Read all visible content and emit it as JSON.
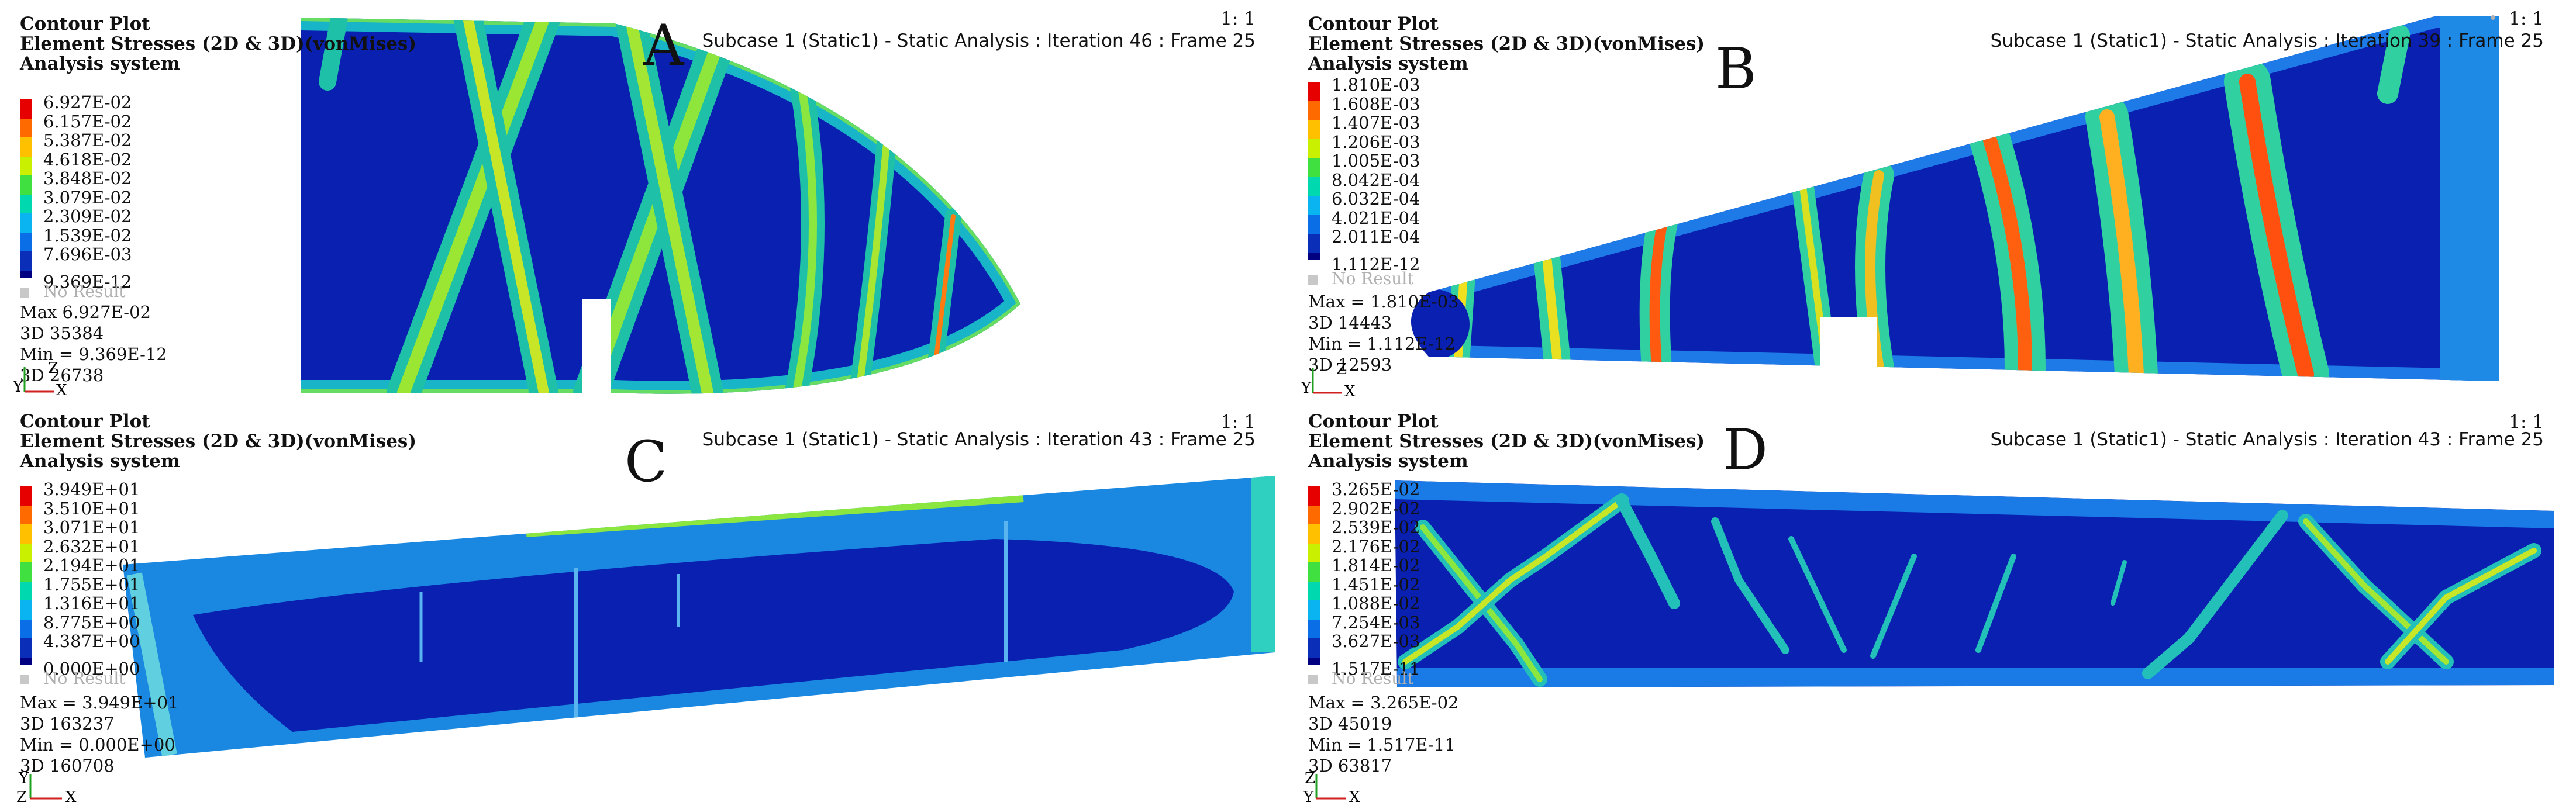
{
  "colors": {
    "scale": [
      "#e60000",
      "#ff5a00",
      "#ffb000",
      "#f2f200",
      "#8cf000",
      "#00e060",
      "#00d8c0",
      "#0ab4f0",
      "#0a6ee6",
      "#0a2eb8",
      "#000080"
    ],
    "field": "#0a20b0",
    "no_result": "#c8c8c8"
  },
  "panels": [
    {
      "letter": "A",
      "header": [
        "Contour Plot",
        "Element Stresses (2D & 3D)(vonMises)",
        "Analysis system"
      ],
      "scale_ratio": "1: 1",
      "subcase": "Subcase 1 (Static1) - Static Analysis : Iteration 46 : Frame 25",
      "legend": [
        "6.927E-02",
        "6.157E-02",
        "5.387E-02",
        "4.618E-02",
        "3.848E-02",
        "3.079E-02",
        "2.309E-02",
        "1.539E-02",
        "7.696E-03",
        "9.369E-12"
      ],
      "no_result": "No Result",
      "stats": [
        "Max   6.927E-02",
        "3D 35384",
        "Min = 9.369E-12",
        "3D 26738"
      ],
      "axes": {
        "v": "Y",
        "h": "X",
        "z": "Z"
      }
    },
    {
      "letter": "B",
      "header": [
        "Contour Plot",
        "Element Stresses (2D & 3D)(vonMises)",
        "Analysis system"
      ],
      "scale_ratio": "1: 1",
      "subcase": "Subcase 1 (Static1) - Static Analysis : Iteration 39 : Frame 25",
      "legend": [
        "1.810E-03",
        "1.608E-03",
        "1.407E-03",
        "1.206E-03",
        "1.005E-03",
        "8.042E-04",
        "6.032E-04",
        "4.021E-04",
        "2.011E-04",
        "1.112E-12"
      ],
      "no_result": "No Result",
      "stats": [
        "Max = 1.810E-03",
        "3D 14443",
        "Min = 1.112E-12",
        "3D 12593"
      ],
      "axes": {
        "v": "Y",
        "h": "X",
        "z": "Z"
      }
    },
    {
      "letter": "C",
      "header": [
        "Contour Plot",
        "Element Stresses (2D & 3D)(vonMises)",
        "Analysis system"
      ],
      "scale_ratio": "1: 1",
      "subcase": "Subcase 1 (Static1) - Static Analysis : Iteration 43 : Frame 25",
      "legend": [
        "3.949E+01",
        "3.510E+01",
        "3.071E+01",
        "2.632E+01",
        "2.194E+01",
        "1.755E+01",
        "1.316E+01",
        "8.775E+00",
        "4.387E+00",
        "0.000E+00"
      ],
      "no_result": "No Result",
      "stats": [
        "Max = 3.949E+01",
        "3D 163237",
        "Min = 0.000E+00",
        "3D 160708"
      ],
      "axes": {
        "v": "Y",
        "h": "X",
        "z": "Z"
      }
    },
    {
      "letter": "D",
      "header": [
        "Contour Plot",
        "Element Stresses (2D & 3D)(vonMises)",
        "Analysis system"
      ],
      "scale_ratio": "1: 1",
      "subcase": "Subcase 1 (Static1) - Static Analysis : Iteration 43 : Frame 25",
      "legend": [
        "3.265E-02",
        "2.902E-02",
        "2.539E-02",
        "2.176E-02",
        "1.814E-02",
        "1.451E-02",
        "1.088E-02",
        "7.254E-03",
        "3.627E-03",
        "1.517E-11"
      ],
      "no_result": "No Result",
      "stats": [
        "Max = 3.265E-02",
        "3D 45019",
        "Min = 1.517E-11",
        "3D 63817"
      ],
      "axes": {
        "v": "Y",
        "h": "X",
        "z": "Z"
      }
    }
  ]
}
